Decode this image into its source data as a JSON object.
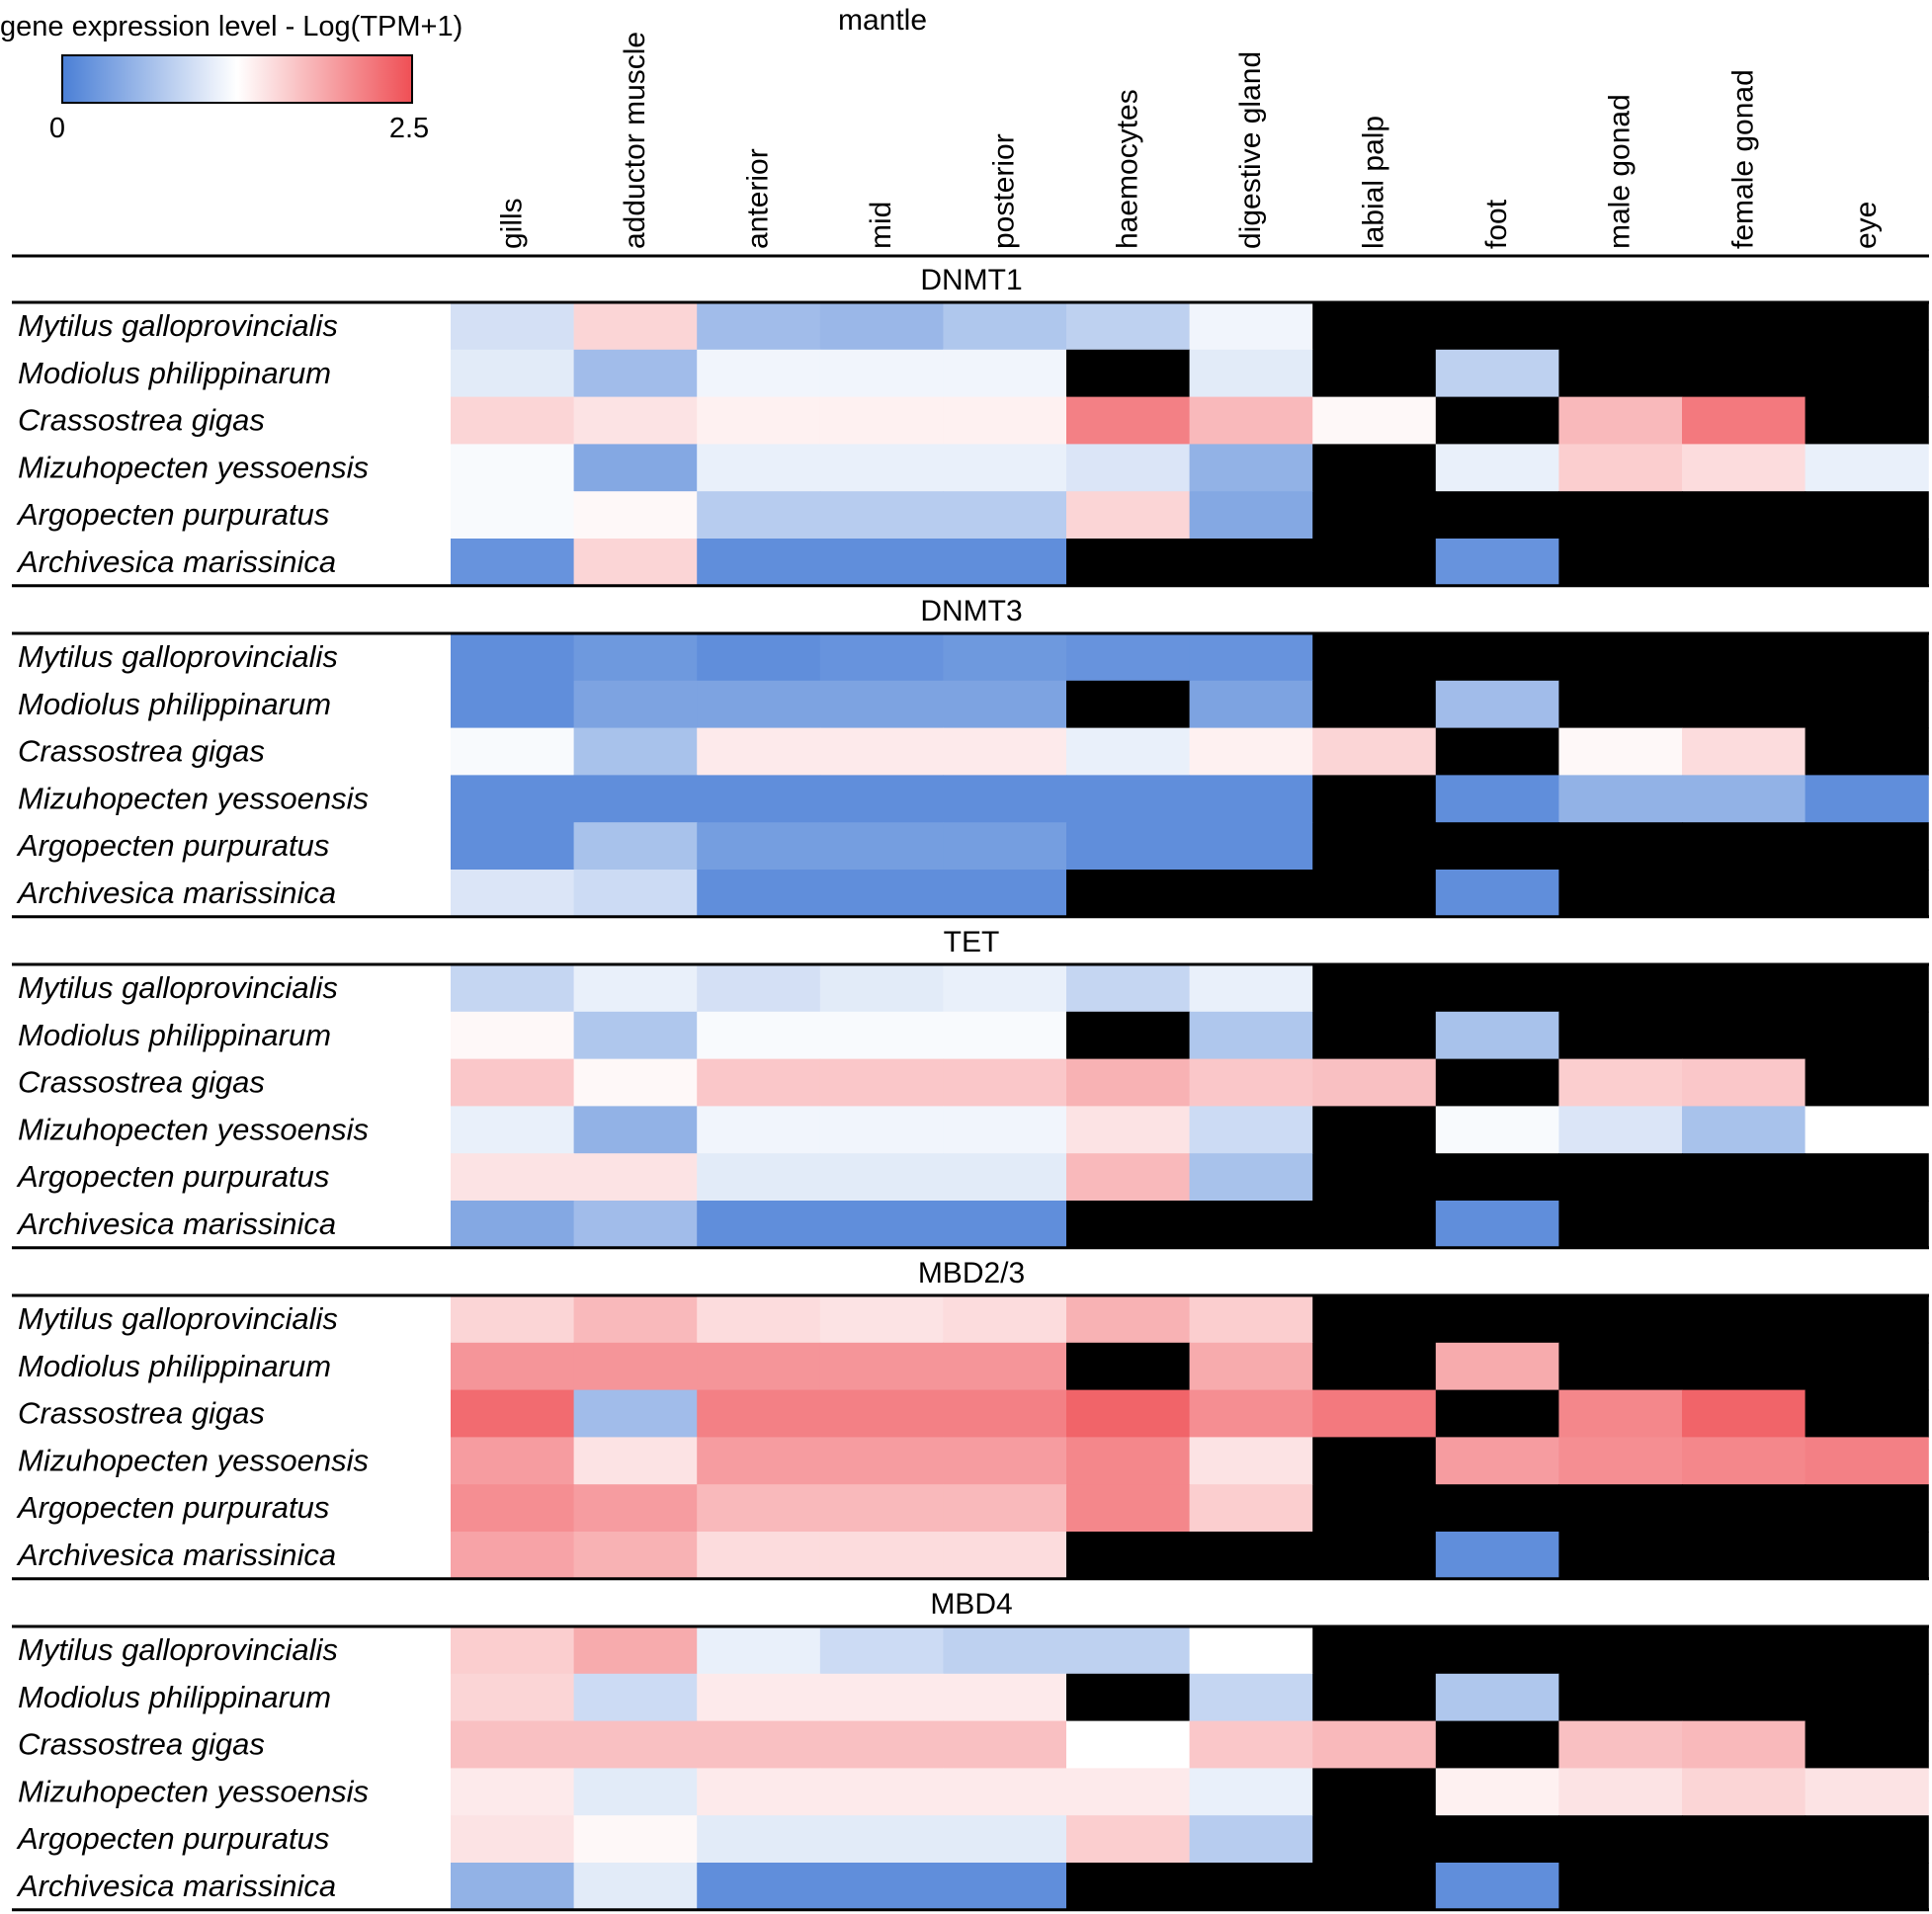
{
  "chart_data": {
    "type": "heatmap",
    "legend": {
      "title": "gene expression level - Log(TPM+1)",
      "min_label": "0",
      "max_label": "2.5",
      "min": 0,
      "max": 2.5,
      "colors": [
        "#4a7fd6",
        "#ffffff",
        "#ef4f55"
      ]
    },
    "group_label": "mantle",
    "columns": [
      "gills",
      "adductor muscle",
      "anterior",
      "mid",
      "posterior",
      "haemocytes",
      "digestive gland",
      "labial palp",
      "foot",
      "male gonad",
      "female gonad",
      "eye"
    ],
    "species": [
      "Mytilus galloprovincialis",
      "Modiolus philippinarum",
      "Crassostrea gigas",
      "Mizuhopecten yessoensis",
      "Argopecten purpuratus",
      "Archivesica marissinica"
    ],
    "missing_color": "#000000",
    "panels": [
      {
        "gene": "DNMT1",
        "rows": [
          [
            0.95,
            1.55,
            0.6,
            0.55,
            0.7,
            0.8,
            1.15,
            null,
            null,
            null,
            null,
            null
          ],
          [
            1.05,
            0.6,
            1.15,
            1.15,
            1.15,
            null,
            1.05,
            null,
            0.8,
            null,
            null,
            null
          ],
          [
            1.55,
            1.45,
            1.35,
            1.35,
            1.35,
            2.15,
            1.75,
            1.3,
            null,
            1.75,
            2.2,
            null
          ],
          [
            1.2,
            0.4,
            1.1,
            1.1,
            1.1,
            1.0,
            0.5,
            null,
            1.1,
            1.6,
            1.5,
            1.1
          ],
          [
            1.2,
            1.3,
            0.75,
            0.75,
            0.75,
            1.55,
            0.4,
            null,
            null,
            null,
            null,
            null
          ],
          [
            0.2,
            1.55,
            0.15,
            0.15,
            0.15,
            null,
            null,
            null,
            0.2,
            null,
            null,
            null
          ]
        ]
      },
      {
        "gene": "DNMT3",
        "rows": [
          [
            0.15,
            0.25,
            0.15,
            0.2,
            0.25,
            0.2,
            0.2,
            null,
            null,
            null,
            null,
            null
          ],
          [
            0.15,
            0.35,
            0.35,
            0.35,
            0.35,
            null,
            0.35,
            null,
            0.6,
            null,
            null,
            null
          ],
          [
            1.2,
            0.65,
            1.4,
            1.4,
            1.4,
            1.1,
            1.35,
            1.55,
            null,
            1.3,
            1.5,
            null
          ],
          [
            0.15,
            0.15,
            0.15,
            0.15,
            0.15,
            0.15,
            0.15,
            null,
            0.15,
            0.5,
            0.5,
            0.15
          ],
          [
            0.15,
            0.65,
            0.3,
            0.3,
            0.3,
            0.15,
            0.15,
            null,
            null,
            null,
            null,
            null
          ],
          [
            1.0,
            0.9,
            0.15,
            0.15,
            0.15,
            null,
            null,
            null,
            0.15,
            null,
            null,
            null
          ]
        ]
      },
      {
        "gene": "TET",
        "rows": [
          [
            0.85,
            1.1,
            0.95,
            1.05,
            1.1,
            0.85,
            1.1,
            null,
            null,
            null,
            null,
            null
          ],
          [
            1.3,
            0.7,
            1.2,
            1.2,
            1.2,
            null,
            0.7,
            null,
            0.65,
            null,
            null,
            null
          ],
          [
            1.65,
            1.3,
            1.65,
            1.65,
            1.65,
            1.8,
            1.65,
            1.7,
            null,
            1.6,
            1.65,
            null
          ],
          [
            1.1,
            0.5,
            1.15,
            1.15,
            1.15,
            1.45,
            0.9,
            null,
            1.2,
            1.0,
            0.65,
            1.25
          ],
          [
            1.45,
            1.45,
            1.05,
            1.05,
            1.05,
            1.75,
            0.65,
            null,
            null,
            null,
            null,
            null
          ],
          [
            0.4,
            0.6,
            0.15,
            0.15,
            0.15,
            null,
            null,
            null,
            0.15,
            null,
            null,
            null
          ]
        ]
      },
      {
        "gene": "MBD2/3",
        "rows": [
          [
            1.55,
            1.75,
            1.5,
            1.45,
            1.5,
            1.8,
            1.6,
            null,
            null,
            null,
            null,
            null
          ],
          [
            2.0,
            2.0,
            2.0,
            2.0,
            2.0,
            null,
            1.85,
            null,
            1.85,
            null,
            null,
            null
          ],
          [
            2.3,
            0.6,
            2.15,
            2.15,
            2.15,
            2.35,
            2.05,
            2.2,
            null,
            2.1,
            2.35,
            null
          ],
          [
            1.95,
            1.45,
            1.95,
            1.95,
            1.95,
            2.1,
            1.45,
            null,
            1.95,
            2.05,
            2.1,
            2.15
          ],
          [
            2.05,
            1.95,
            1.75,
            1.75,
            1.75,
            2.1,
            1.6,
            null,
            null,
            null,
            null,
            null
          ],
          [
            1.9,
            1.8,
            1.5,
            1.5,
            1.5,
            null,
            null,
            null,
            0.15,
            null,
            null,
            null
          ]
        ]
      },
      {
        "gene": "MBD4",
        "rows": [
          [
            1.6,
            1.85,
            1.1,
            0.9,
            0.8,
            0.8,
            1.25,
            null,
            null,
            null,
            null,
            null
          ],
          [
            1.55,
            0.9,
            1.4,
            1.4,
            1.4,
            null,
            0.85,
            null,
            0.7,
            null,
            null,
            null
          ],
          [
            1.7,
            1.7,
            1.7,
            1.7,
            1.7,
            1.25,
            1.65,
            1.75,
            null,
            1.7,
            1.75,
            null
          ],
          [
            1.4,
            1.05,
            1.4,
            1.4,
            1.4,
            1.4,
            1.1,
            null,
            1.35,
            1.45,
            1.55,
            1.45
          ],
          [
            1.45,
            1.3,
            1.05,
            1.05,
            1.05,
            1.6,
            0.75,
            null,
            null,
            null,
            null,
            null
          ],
          [
            0.5,
            1.05,
            0.15,
            0.15,
            0.15,
            null,
            null,
            null,
            0.15,
            null,
            null,
            null
          ]
        ]
      }
    ]
  }
}
